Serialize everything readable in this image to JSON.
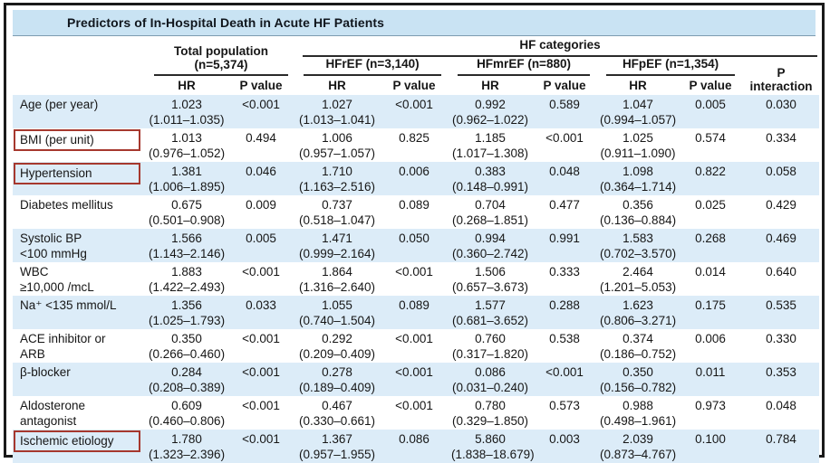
{
  "title": "Predictors of In-Hospital Death in Acute HF Patients",
  "header": {
    "total_line1": "Total population",
    "total_line2": "(n=5,374)",
    "hf_categories": "HF categories",
    "groups": {
      "hfref": "HFrEF (n=3,140)",
      "hfmref": "HFmrEF (n=880)",
      "hfpef": "HFpEF (n=1,354)"
    },
    "hr": "HR",
    "p_value": "P value",
    "p_interaction_line1": "P",
    "p_interaction_line2": "interaction"
  },
  "rows": [
    {
      "label": "Age (per year)",
      "label2": "",
      "boxed": false,
      "total": {
        "hr": "1.023",
        "ci": "(1.011–1.035)",
        "p": "<0.001"
      },
      "hfref": {
        "hr": "1.027",
        "ci": "(1.013–1.041)",
        "p": "<0.001"
      },
      "hfmref": {
        "hr": "0.992",
        "ci": "(0.962–1.022)",
        "p": "0.589"
      },
      "hfpef": {
        "hr": "1.047",
        "ci": "(0.994–1.057)",
        "p": "0.005"
      },
      "p_interaction": "0.030"
    },
    {
      "label": "BMI (per unit)",
      "label2": "",
      "boxed": true,
      "total": {
        "hr": "1.013",
        "ci": "(0.976–1.052)",
        "p": "0.494"
      },
      "hfref": {
        "hr": "1.006",
        "ci": "(0.957–1.057)",
        "p": "0.825"
      },
      "hfmref": {
        "hr": "1.185",
        "ci": "(1.017–1.308)",
        "p": "<0.001"
      },
      "hfpef": {
        "hr": "1.025",
        "ci": "(0.911–1.090)",
        "p": "0.574"
      },
      "p_interaction": "0.334"
    },
    {
      "label": "Hypertension",
      "label2": "",
      "boxed": true,
      "total": {
        "hr": "1.381",
        "ci": "(1.006–1.895)",
        "p": "0.046"
      },
      "hfref": {
        "hr": "1.710",
        "ci": "(1.163–2.516)",
        "p": "0.006"
      },
      "hfmref": {
        "hr": "0.383",
        "ci": "(0.148–0.991)",
        "p": "0.048"
      },
      "hfpef": {
        "hr": "1.098",
        "ci": "(0.364–1.714)",
        "p": "0.822"
      },
      "p_interaction": "0.058"
    },
    {
      "label": "Diabetes mellitus",
      "label2": "",
      "boxed": false,
      "total": {
        "hr": "0.675",
        "ci": "(0.501–0.908)",
        "p": "0.009"
      },
      "hfref": {
        "hr": "0.737",
        "ci": "(0.518–1.047)",
        "p": "0.089"
      },
      "hfmref": {
        "hr": "0.704",
        "ci": "(0.268–1.851)",
        "p": "0.477"
      },
      "hfpef": {
        "hr": "0.356",
        "ci": "(0.136–0.884)",
        "p": "0.025"
      },
      "p_interaction": "0.429"
    },
    {
      "label": "Systolic BP",
      "label2": "<100 mmHg",
      "boxed": false,
      "total": {
        "hr": "1.566",
        "ci": "(1.143–2.146)",
        "p": "0.005"
      },
      "hfref": {
        "hr": "1.471",
        "ci": "(0.999–2.164)",
        "p": "0.050"
      },
      "hfmref": {
        "hr": "0.994",
        "ci": "(0.360–2.742)",
        "p": "0.991"
      },
      "hfpef": {
        "hr": "1.583",
        "ci": "(0.702–3.570)",
        "p": "0.268"
      },
      "p_interaction": "0.469"
    },
    {
      "label": "WBC",
      "label2": "≥10,000 /mcL",
      "boxed": false,
      "total": {
        "hr": "1.883",
        "ci": "(1.422–2.493)",
        "p": "<0.001"
      },
      "hfref": {
        "hr": "1.864",
        "ci": "(1.316–2.640)",
        "p": "<0.001"
      },
      "hfmref": {
        "hr": "1.506",
        "ci": "(0.657–3.673)",
        "p": "0.333"
      },
      "hfpef": {
        "hr": "2.464",
        "ci": "(1.201–5.053)",
        "p": "0.014"
      },
      "p_interaction": "0.640"
    },
    {
      "label": "Na⁺ <135 mmol/L",
      "label2": "",
      "boxed": false,
      "total": {
        "hr": "1.356",
        "ci": "(1.025–1.793)",
        "p": "0.033"
      },
      "hfref": {
        "hr": "1.055",
        "ci": "(0.740–1.504)",
        "p": "0.089"
      },
      "hfmref": {
        "hr": "1.577",
        "ci": "(0.681–3.652)",
        "p": "0.288"
      },
      "hfpef": {
        "hr": "1.623",
        "ci": "(0.806–3.271)",
        "p": "0.175"
      },
      "p_interaction": "0.535"
    },
    {
      "label": "ACE inhibitor or",
      "label2": "ARB",
      "boxed": false,
      "total": {
        "hr": "0.350",
        "ci": "(0.266–0.460)",
        "p": "<0.001"
      },
      "hfref": {
        "hr": "0.292",
        "ci": "(0.209–0.409)",
        "p": "<0.001"
      },
      "hfmref": {
        "hr": "0.760",
        "ci": "(0.317–1.820)",
        "p": "0.538"
      },
      "hfpef": {
        "hr": "0.374",
        "ci": "(0.186–0.752)",
        "p": "0.006"
      },
      "p_interaction": "0.330"
    },
    {
      "label": "β-blocker",
      "label2": "",
      "boxed": false,
      "total": {
        "hr": "0.284",
        "ci": "(0.208–0.389)",
        "p": "<0.001"
      },
      "hfref": {
        "hr": "0.278",
        "ci": "(0.189–0.409)",
        "p": "<0.001"
      },
      "hfmref": {
        "hr": "0.086",
        "ci": "(0.031–0.240)",
        "p": "<0.001"
      },
      "hfpef": {
        "hr": "0.350",
        "ci": "(0.156–0.782)",
        "p": "0.011"
      },
      "p_interaction": "0.353"
    },
    {
      "label": "Aldosterone",
      "label2": "antagonist",
      "boxed": false,
      "total": {
        "hr": "0.609",
        "ci": "(0.460–0.806)",
        "p": "<0.001"
      },
      "hfref": {
        "hr": "0.467",
        "ci": "(0.330–0.661)",
        "p": "<0.001"
      },
      "hfmref": {
        "hr": "0.780",
        "ci": "(0.329–1.850)",
        "p": "0.573"
      },
      "hfpef": {
        "hr": "0.988",
        "ci": "(0.498–1.961)",
        "p": "0.973"
      },
      "p_interaction": "0.048"
    },
    {
      "label": "Ischemic etiology",
      "label2": "",
      "boxed": true,
      "total": {
        "hr": "1.780",
        "ci": "(1.323–2.396)",
        "p": "<0.001"
      },
      "hfref": {
        "hr": "1.367",
        "ci": "(0.957–1.955)",
        "p": "0.086"
      },
      "hfmref": {
        "hr": "5.860",
        "ci": "(1.838–18.679)",
        "p": "0.003"
      },
      "hfpef": {
        "hr": "2.039",
        "ci": "(0.873–4.767)",
        "p": "0.100"
      },
      "p_interaction": "0.784"
    }
  ],
  "colors": {
    "title_bar": "#c9e3f3",
    "row_stripe": "#dcecf8",
    "outer_border": "#1a1a1a",
    "annotation_box": "#a6382e"
  }
}
